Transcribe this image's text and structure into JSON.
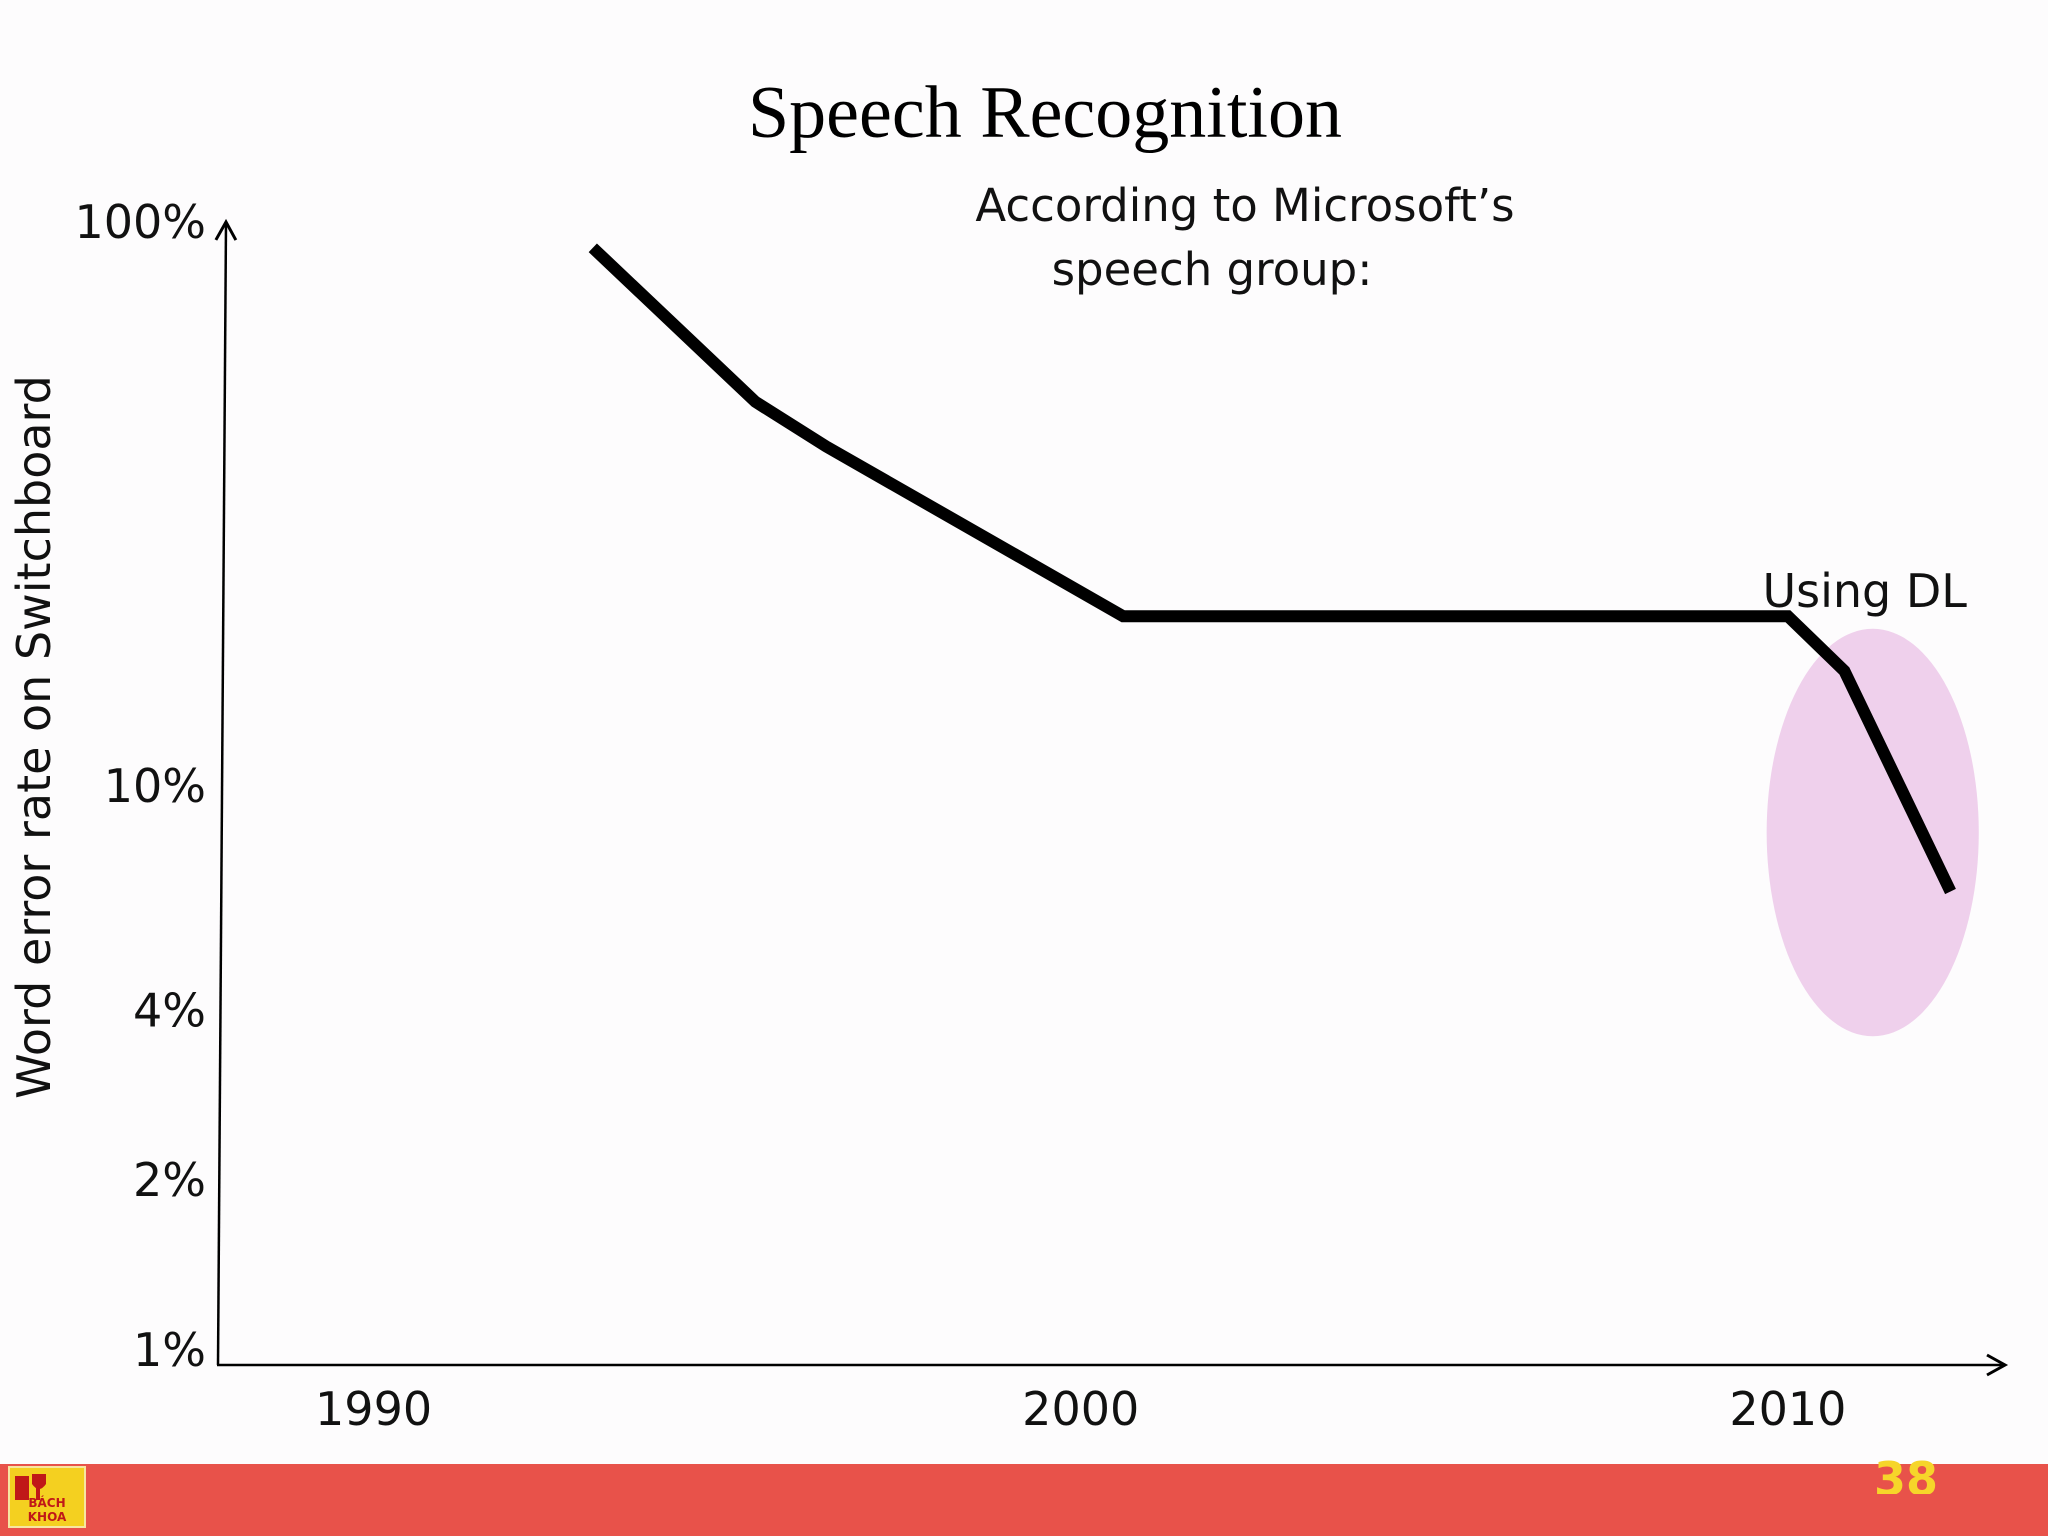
{
  "chart_data": {
    "type": "line",
    "title": "Speech Recognition",
    "subtitle_lines": [
      "According to Microsoft’s",
      "speech group:"
    ],
    "ylabel": "Word error rate on Switchboard",
    "xlabel": "",
    "y_scale": "log",
    "y_ticks": [
      {
        "value": 100,
        "label": "100%"
      },
      {
        "value": 10,
        "label": "10%"
      },
      {
        "value": 4,
        "label": "4%"
      },
      {
        "value": 2,
        "label": "2%"
      },
      {
        "value": 1,
        "label": "1%"
      }
    ],
    "x_ticks": [
      {
        "value": 1990,
        "label": "1990"
      },
      {
        "value": 2000,
        "label": "2000"
      },
      {
        "value": 2010,
        "label": "2010"
      }
    ],
    "ylim": [
      1,
      100
    ],
    "xlim": [
      1987.8,
      2013.0
    ],
    "series": [
      {
        "name": "Word error rate",
        "color": "#000000",
        "points": [
          {
            "x": 1993.1,
            "y": 90
          },
          {
            "x": 1995.4,
            "y": 48
          },
          {
            "x": 1996.4,
            "y": 40
          },
          {
            "x": 2000.6,
            "y": 20
          },
          {
            "x": 2010.0,
            "y": 20
          },
          {
            "x": 2010.8,
            "y": 16
          },
          {
            "x": 2012.3,
            "y": 6.5
          }
        ]
      }
    ],
    "annotations": [
      {
        "text": "Using DL",
        "x_from": 2009.7,
        "x_to": 2012.7,
        "y_from": 3.6,
        "y_to": 19,
        "color": "#efd0ec"
      }
    ]
  },
  "footer": {
    "logo_text": "BÁCH KHOA",
    "page_number": "38",
    "bar_color": "#e8524a",
    "page_number_color": "#f6d52a"
  }
}
